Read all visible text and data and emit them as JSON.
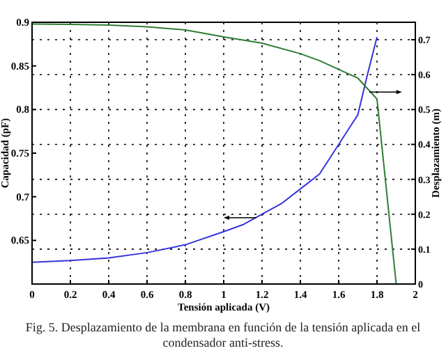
{
  "chart_data": {
    "type": "line",
    "xlabel": "Tensión aplicada (V)",
    "ylabel": "Capacidad (pF)",
    "y2label": "Desplazamiento (m)",
    "xlim": [
      0,
      2
    ],
    "xticks": [
      0,
      0.2,
      0.4,
      0.6,
      0.8,
      1,
      1.2,
      1.4,
      1.6,
      1.8,
      2
    ],
    "ylim": [
      0.6,
      0.9
    ],
    "yticks": [
      0.65,
      0.7,
      0.75,
      0.8,
      0.85,
      0.9
    ],
    "y2lim": [
      0,
      0.75
    ],
    "y2ticks": [
      0,
      0.1,
      0.2,
      0.3,
      0.4,
      0.5,
      0.6,
      0.7
    ],
    "grid": true,
    "line_style": "solid",
    "marker": "none",
    "series": [
      {
        "color": "#3333dd",
        "x": [
          0,
          0.2,
          0.4,
          0.6,
          0.8,
          1,
          1.1,
          1.2,
          1.3,
          1.4,
          1.5,
          1.6,
          1.7,
          1.75,
          1.8
        ],
        "values": [
          0.625,
          0.627,
          0.63,
          0.636,
          0.645,
          0.66,
          0.668,
          0.68,
          0.692,
          0.709,
          0.726,
          0.76,
          0.794,
          0.84,
          0.883
        ]
      },
      {
        "color": "#2e7d32",
        "axis": "y2",
        "x": [
          0,
          0.2,
          0.4,
          0.6,
          0.8,
          1,
          1.2,
          1.4,
          1.5,
          1.6,
          1.7,
          1.8,
          1.9
        ],
        "values": [
          0.745,
          0.744,
          0.742,
          0.737,
          0.728,
          0.708,
          0.69,
          0.66,
          0.64,
          0.615,
          0.59,
          0.53,
          0
        ]
      }
    ],
    "annotations": [
      "Fig. 5.   Desplazamiento de la membrana en función de la tensión aplicada en el condensador anti-stress."
    ]
  }
}
